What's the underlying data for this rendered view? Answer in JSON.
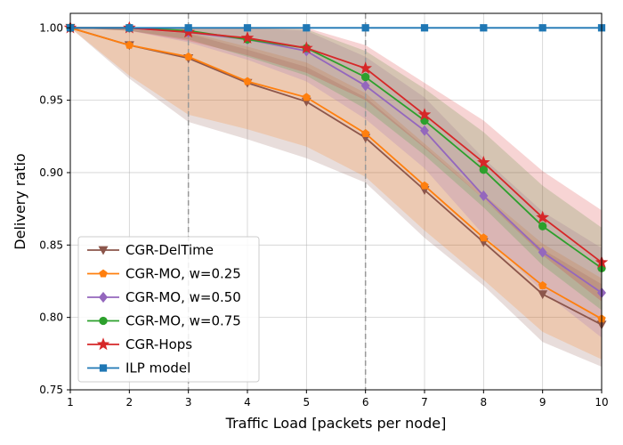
{
  "chart_data": {
    "type": "line",
    "title": "",
    "xlabel": "Traffic Load [packets per node]",
    "ylabel": "Delivery ratio",
    "xlim": [
      1,
      10
    ],
    "ylim": [
      0.75,
      1.01
    ],
    "grid": true,
    "legend_position": "lower-left",
    "x": [
      1,
      2,
      3,
      4,
      5,
      6,
      7,
      8,
      9,
      10
    ],
    "xticks": [
      1,
      2,
      3,
      4,
      5,
      6,
      7,
      8,
      9,
      10
    ],
    "yticks": [
      0.75,
      0.8,
      0.85,
      0.9,
      0.95,
      1.0
    ],
    "vlines": [
      3,
      6
    ],
    "series": [
      {
        "name": "CGR-DelTime",
        "color": "#8c564b",
        "marker": "triangle-down",
        "values": [
          1.0,
          0.988,
          0.979,
          0.962,
          0.949,
          0.924,
          0.888,
          0.852,
          0.816,
          0.795
        ],
        "band_low": [
          1.0,
          0.965,
          0.935,
          0.923,
          0.91,
          0.893,
          0.855,
          0.822,
          0.783,
          0.766
        ],
        "band_high": [
          1.0,
          0.999,
          0.996,
          0.985,
          0.973,
          0.952,
          0.918,
          0.882,
          0.847,
          0.823
        ]
      },
      {
        "name": "CGR-MO, w=0.25",
        "color": "#ff7f0e",
        "marker": "pentagon",
        "values": [
          1.0,
          0.988,
          0.98,
          0.963,
          0.952,
          0.927,
          0.891,
          0.855,
          0.822,
          0.799
        ],
        "band_low": [
          1.0,
          0.967,
          0.94,
          0.93,
          0.918,
          0.897,
          0.86,
          0.826,
          0.79,
          0.771
        ],
        "band_high": [
          1.0,
          0.999,
          0.997,
          0.987,
          0.976,
          0.955,
          0.92,
          0.885,
          0.851,
          0.827
        ]
      },
      {
        "name": "CGR-MO, w=0.50",
        "color": "#9467bd",
        "marker": "diamond",
        "values": [
          1.0,
          1.0,
          0.997,
          0.992,
          0.984,
          0.96,
          0.929,
          0.884,
          0.845,
          0.817
        ],
        "band_low": [
          1.0,
          0.998,
          0.99,
          0.978,
          0.963,
          0.937,
          0.903,
          0.857,
          0.818,
          0.786
        ],
        "band_high": [
          1.0,
          1.0,
          1.0,
          1.0,
          0.998,
          0.98,
          0.952,
          0.91,
          0.873,
          0.848
        ]
      },
      {
        "name": "CGR-MO, w=0.75",
        "color": "#2ca02c",
        "marker": "circle",
        "values": [
          1.0,
          1.0,
          0.998,
          0.992,
          0.986,
          0.966,
          0.936,
          0.902,
          0.863,
          0.834
        ],
        "band_low": [
          1.0,
          0.998,
          0.992,
          0.98,
          0.967,
          0.944,
          0.912,
          0.876,
          0.836,
          0.805
        ],
        "band_high": [
          1.0,
          1.0,
          1.0,
          1.0,
          0.999,
          0.984,
          0.958,
          0.928,
          0.891,
          0.862
        ]
      },
      {
        "name": "CGR-Hops",
        "color": "#d62728",
        "marker": "star",
        "values": [
          1.0,
          1.0,
          0.997,
          0.993,
          0.986,
          0.972,
          0.94,
          0.907,
          0.869,
          0.838
        ],
        "band_low": [
          1.0,
          0.998,
          0.991,
          0.981,
          0.969,
          0.95,
          0.917,
          0.882,
          0.843,
          0.811
        ],
        "band_high": [
          1.0,
          1.0,
          1.0,
          1.0,
          1.0,
          0.988,
          0.962,
          0.936,
          0.901,
          0.874
        ]
      },
      {
        "name": "ILP model",
        "color": "#1f77b4",
        "marker": "square",
        "values": [
          1.0,
          1.0,
          1.0,
          1.0,
          1.0,
          1.0,
          1.0,
          1.0,
          1.0,
          1.0
        ]
      }
    ]
  }
}
